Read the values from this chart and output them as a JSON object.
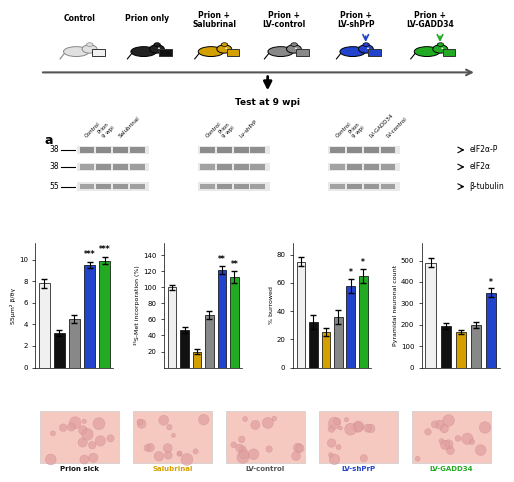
{
  "top_labels": [
    "Control",
    "Prion only",
    "Prion +\nSalubrinal",
    "Prion +\nLV-control",
    "Prion +\nLV-shPrP",
    "Prion +\nLV-GADD34"
  ],
  "mouse_colors": [
    "#e0e0e0",
    "#222222",
    "#d4a000",
    "#888888",
    "#2244cc",
    "#22aa22"
  ],
  "square_colors": [
    "#f0f0f0",
    "#111111",
    "#d4a000",
    "#888888",
    "#2244cc",
    "#22aa22"
  ],
  "arrow_color": "#2244cc",
  "green_arrow_color": "#22aa22",
  "test_label": "Test at 9 wpi",
  "panel_a_label": "a",
  "kda_labels": [
    "38",
    "38",
    "55"
  ],
  "wb_labels": [
    "eIF2α-P",
    "eIF2α",
    "β-tubulin"
  ],
  "bar_colors": [
    "#f0f0f0",
    "#111111",
    "#d4a000",
    "#888888",
    "#2244cc",
    "#22aa22"
  ],
  "chart1_yticks": [
    0,
    2,
    4,
    6,
    8,
    10
  ],
  "chart1_values": [
    7.8,
    3.2,
    4.5,
    9.5,
    9.9
  ],
  "chart1_errors": [
    0.4,
    0.3,
    0.4,
    0.3,
    0.3
  ],
  "chart1_sig": [
    "",
    "",
    "",
    "***",
    "***"
  ],
  "chart2_yticks": [
    20,
    40,
    60,
    80,
    100,
    120,
    140
  ],
  "chart2_values": [
    100,
    47,
    20,
    65,
    122,
    113
  ],
  "chart2_errors": [
    3,
    4,
    3,
    5,
    5,
    8
  ],
  "chart2_sig": [
    "",
    "",
    "",
    "",
    "**",
    "**"
  ],
  "chart3_yticks": [
    0,
    20,
    40,
    60,
    80
  ],
  "chart3_values": [
    75,
    32,
    25,
    36,
    58,
    65
  ],
  "chart3_errors": [
    3,
    5,
    3,
    5,
    5,
    5
  ],
  "chart3_sig": [
    "",
    "",
    "",
    "",
    "*",
    "*"
  ],
  "chart4_yticks": [
    0,
    100,
    200,
    300,
    400,
    500
  ],
  "chart4_values": [
    490,
    195,
    165,
    200,
    350
  ],
  "chart4_errors": [
    20,
    15,
    10,
    15,
    20
  ],
  "chart4_sig": [
    "",
    "",
    "",
    "",
    "*"
  ],
  "legend_labels": [
    "Prion sick",
    "Salubrinal",
    "LV-control",
    "LV-shPrP",
    "LV-GADD34"
  ],
  "hist_label_colors": [
    "#111111",
    "#d4a000",
    "#555555",
    "#2244cc",
    "#22aa22"
  ]
}
